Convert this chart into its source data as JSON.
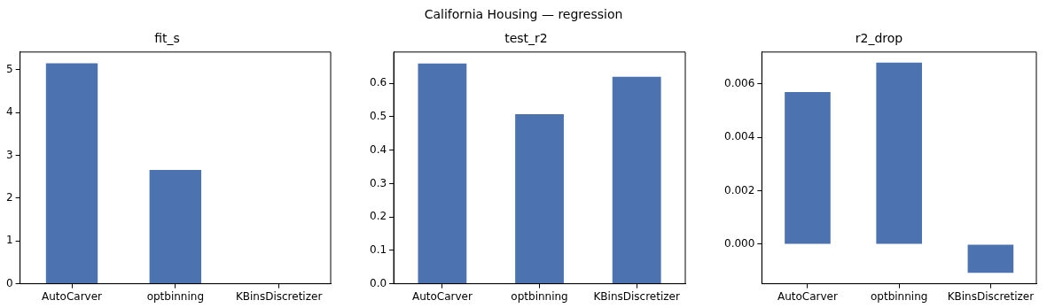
{
  "chart_data": [
    {
      "type": "bar",
      "title": "fit_s",
      "annotations": [
        "California Housing — regression"
      ],
      "categories": [
        "AutoCarver",
        "optbinning",
        "KBinsDiscretizer"
      ],
      "values": [
        5.15,
        2.66,
        0
      ],
      "color": "#4c72b0",
      "ylim": [
        0,
        5.41
      ],
      "yticks": [
        0,
        1,
        2,
        3,
        4,
        5
      ],
      "grid": false,
      "legend": false
    },
    {
      "type": "bar",
      "title": "test_r2",
      "categories": [
        "AutoCarver",
        "optbinning",
        "KBinsDiscretizer"
      ],
      "values": [
        0.66,
        0.508,
        0.62
      ],
      "color": "#4c72b0",
      "ylim": [
        0,
        0.694
      ],
      "yticks": [
        {
          "value": 0,
          "label": "0.0"
        },
        {
          "value": 0.1,
          "label": "0.1"
        },
        {
          "value": 0.2,
          "label": "0.2"
        },
        {
          "value": 0.3,
          "label": "0.3"
        },
        {
          "value": 0.4,
          "label": "0.4"
        },
        {
          "value": 0.5,
          "label": "0.5"
        },
        {
          "value": 0.6,
          "label": "0.6"
        }
      ],
      "grid": false,
      "legend": false
    },
    {
      "type": "bar",
      "title": "r2_drop",
      "categories": [
        "AutoCarver",
        "optbinning",
        "KBinsDiscretizer"
      ],
      "values": [
        0.0057,
        0.0068,
        -0.00107
      ],
      "color": "#4c72b0",
      "ylim": [
        -0.00148,
        0.0072
      ],
      "yticks": [
        {
          "value": 0,
          "label": "0.000"
        },
        {
          "value": 0.002,
          "label": "0.002"
        },
        {
          "value": 0.004,
          "label": "0.004"
        },
        {
          "value": 0.006,
          "label": "0.006"
        }
      ],
      "grid": false,
      "legend": false
    }
  ]
}
